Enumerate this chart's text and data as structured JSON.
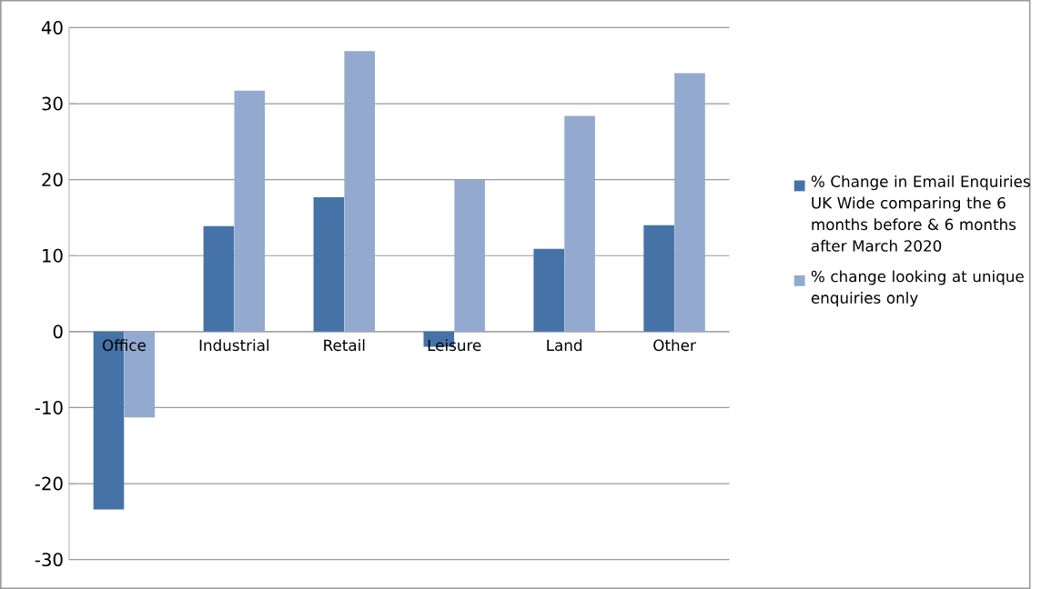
{
  "chart_data": {
    "type": "bar",
    "categories": [
      "Office",
      "Industrial",
      "Retail",
      "Leisure",
      "Land",
      "Other"
    ],
    "series": [
      {
        "name": "% Change in Email Enquiries UK Wide comparing the 6 months before & 6 months after March 2020",
        "color": "#4573a7",
        "values": [
          -23.4,
          13.9,
          17.7,
          -2.0,
          10.9,
          14.0
        ]
      },
      {
        "name": "% change looking at unique enquiries only",
        "color": "#93a9cf",
        "values": [
          -11.3,
          31.7,
          36.9,
          20.0,
          28.4,
          34.0
        ]
      }
    ],
    "ylim": [
      -30,
      40
    ],
    "yticks": [
      -30,
      -20,
      -10,
      0,
      10,
      20,
      30,
      40
    ],
    "grid": "y",
    "legend": "right"
  }
}
